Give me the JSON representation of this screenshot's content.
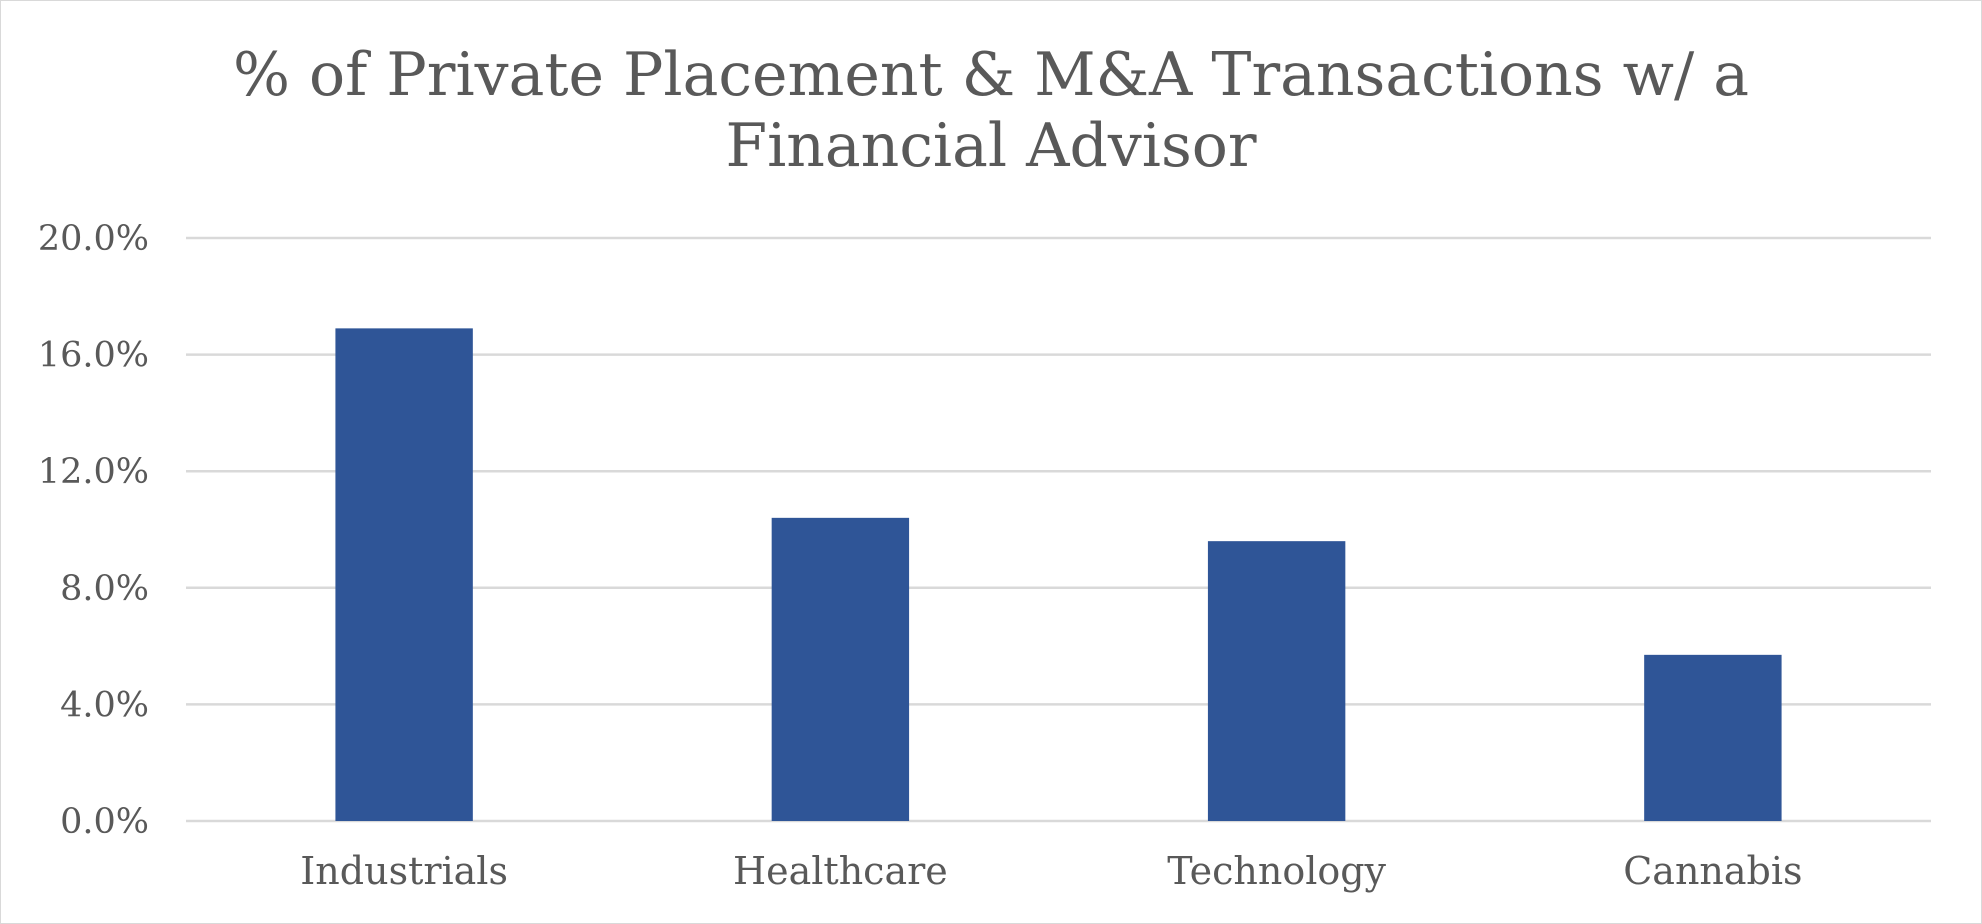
{
  "chart_data": {
    "type": "bar",
    "title_lines": [
      "% of Private Placement & M&A Transactions w/ a",
      "Financial Advisor"
    ],
    "categories": [
      "Industrials",
      "Healthcare",
      "Technology",
      "Cannabis"
    ],
    "values": [
      16.9,
      10.4,
      9.6,
      5.7
    ],
    "ylim": [
      0,
      20
    ],
    "yticks": [
      0,
      4,
      8,
      12,
      16,
      20
    ],
    "ytick_labels": [
      "0.0%",
      "4.0%",
      "8.0%",
      "12.0%",
      "16.0%",
      "20.0%"
    ],
    "grid": true,
    "legend": "none",
    "bar_color": "#2F5597",
    "grid_color": "#D9D9D9",
    "text_color": "#595959"
  }
}
